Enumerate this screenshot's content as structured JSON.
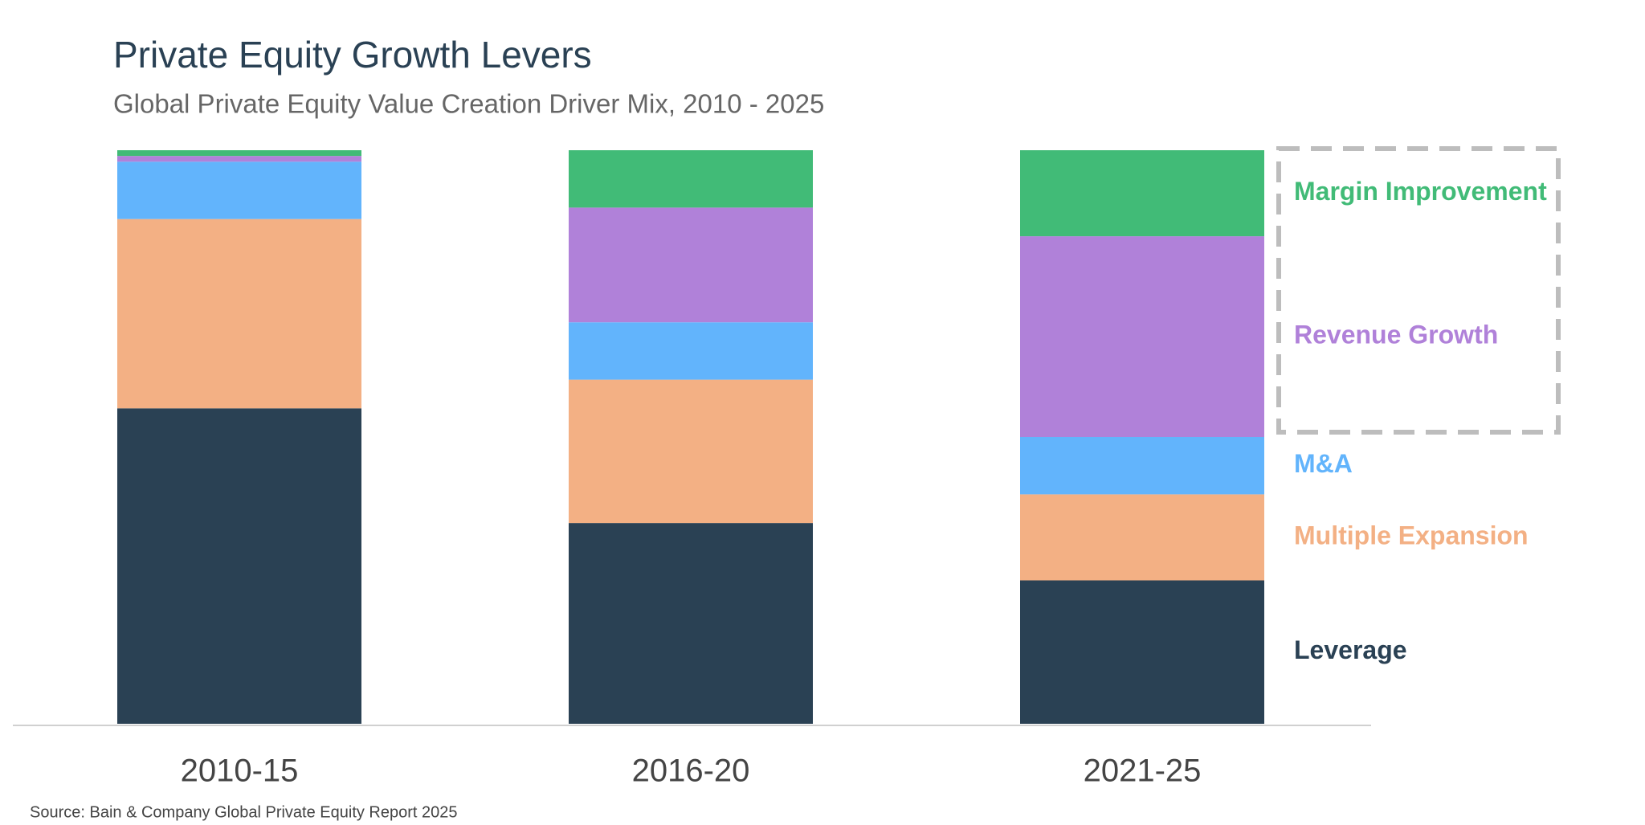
{
  "chart_data": {
    "type": "bar",
    "stacked": true,
    "title": "Private Equity Growth Levers",
    "subtitle": "Global Private Equity Value Creation Driver Mix, 2010 - 2025",
    "source": "Source: Bain & Company Global Private Equity Report 2025",
    "categories": [
      "2010-15",
      "2016-20",
      "2021-25"
    ],
    "series": [
      {
        "name": "Leverage",
        "color": "#2a4154",
        "values": [
          55,
          35,
          25
        ]
      },
      {
        "name": "Multiple Expansion",
        "color": "#f3b084",
        "values": [
          33,
          25,
          15
        ]
      },
      {
        "name": "M&A",
        "color": "#62b4fc",
        "values": [
          10,
          10,
          10
        ]
      },
      {
        "name": "Revenue Growth",
        "color": "#b081d9",
        "values": [
          1,
          20,
          35
        ]
      },
      {
        "name": "Margin Improvement",
        "color": "#41bb77",
        "values": [
          1,
          10,
          15
        ]
      }
    ],
    "ylim": [
      0,
      100
    ],
    "legend": "right"
  }
}
